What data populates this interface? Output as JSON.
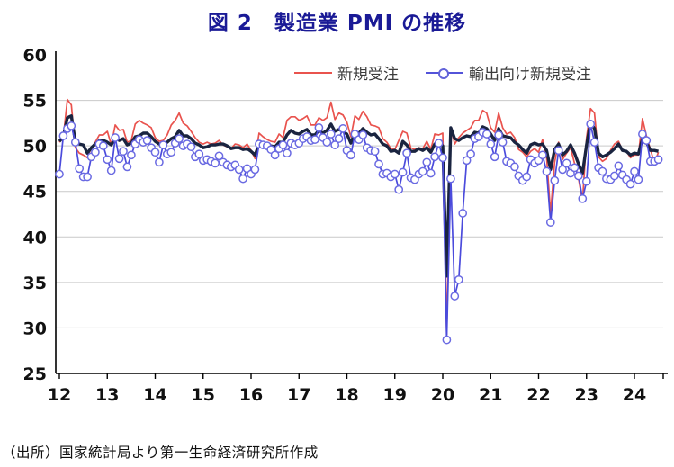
{
  "title": "図 2　製造業 PMI の推移",
  "source": "（出所）国家統計局より第一生命経済研究所作成",
  "legend": {
    "items": [
      {
        "label": "新規受注",
        "color": "#e9534e",
        "marker": "line"
      },
      {
        "label": "輸出向け新規受注",
        "color": "#5353d9",
        "marker": "line-circle"
      }
    ]
  },
  "colors": {
    "title": "#1a1a96",
    "new_orders_line": "#e9534e",
    "export_orders_line": "#4b4bdc",
    "export_marker_stroke": "#6a6ae2",
    "unlabeled_pmi_line": "#1a2440",
    "gridline": "#c9c9c9",
    "axis": "#000000",
    "tick_text": "#111111"
  },
  "chart_data": {
    "type": "line",
    "title": "図 2　製造業 PMI の推移",
    "xlabel": "",
    "ylabel": "",
    "ylim": [
      25,
      60
    ],
    "y_ticks": [
      25,
      30,
      35,
      40,
      45,
      50,
      55,
      60
    ],
    "x_tick_labels": [
      "12",
      "13",
      "14",
      "15",
      "16",
      "17",
      "18",
      "19",
      "20",
      "21",
      "22",
      "23",
      "24"
    ],
    "x_start": "2012-01",
    "x_end": "2024-07",
    "frequency": "monthly",
    "grid": "horizontal gridlines at 30-55",
    "legend_position": "inside top right",
    "series": [
      {
        "name": "新規受注",
        "color": "#e9534e",
        "style": "thin line",
        "values": [
          50.4,
          51.0,
          55.1,
          54.5,
          49.8,
          49.2,
          49.0,
          48.7,
          49.8,
          50.4,
          51.2,
          51.2,
          51.6,
          50.1,
          52.3,
          51.7,
          51.8,
          50.4,
          50.6,
          52.4,
          52.8,
          52.5,
          52.3,
          52.0,
          50.9,
          50.5,
          50.6,
          51.2,
          52.3,
          52.8,
          53.6,
          52.5,
          52.2,
          51.6,
          50.9,
          50.4,
          50.2,
          50.4,
          50.2,
          50.3,
          50.6,
          50.1,
          49.9,
          49.7,
          50.2,
          50.1,
          49.8,
          50.2,
          49.5,
          48.6,
          51.4,
          51.0,
          50.7,
          50.5,
          50.4,
          51.3,
          50.9,
          52.8,
          53.2,
          53.2,
          52.8,
          53.0,
          53.3,
          52.3,
          52.3,
          53.1,
          52.8,
          53.1,
          54.8,
          52.9,
          53.6,
          53.4,
          52.6,
          51.0,
          53.3,
          52.9,
          53.8,
          53.2,
          52.3,
          52.2,
          52.0,
          50.8,
          50.4,
          49.7,
          49.6,
          50.6,
          51.6,
          51.4,
          49.8,
          49.6,
          49.8,
          49.7,
          50.5,
          49.6,
          51.3,
          51.2,
          51.4,
          29.3,
          52.0,
          50.2,
          50.9,
          51.4,
          51.7,
          52.0,
          52.8,
          52.8,
          53.9,
          53.6,
          52.0,
          51.5,
          53.6,
          52.0,
          51.3,
          51.5,
          50.9,
          49.6,
          49.3,
          48.8,
          49.4,
          49.7,
          49.3,
          50.7,
          48.8,
          42.6,
          48.2,
          50.4,
          48.5,
          49.2,
          49.8,
          48.1,
          46.4,
          43.9,
          50.9,
          54.1,
          53.6,
          48.8,
          48.3,
          48.6,
          49.5,
          50.2,
          50.5,
          49.5,
          49.4,
          48.7,
          49.0,
          49.0,
          53.0,
          51.1,
          49.6,
          48.1,
          49.3
        ]
      },
      {
        "name": "輸出向け新規受注",
        "color": "#4b4bdc",
        "style": "thin line with open circle markers",
        "values": [
          46.9,
          51.1,
          51.9,
          52.2,
          50.4,
          47.5,
          46.6,
          46.6,
          48.8,
          49.3,
          50.2,
          50.0,
          48.5,
          47.3,
          50.9,
          48.6,
          49.4,
          47.7,
          49.0,
          50.2,
          50.7,
          50.4,
          50.6,
          49.8,
          49.3,
          48.2,
          50.1,
          49.1,
          49.3,
          50.3,
          50.8,
          50.0,
          50.2,
          49.9,
          48.8,
          49.1,
          48.4,
          48.5,
          48.3,
          48.1,
          48.9,
          48.2,
          47.9,
          47.7,
          47.9,
          47.4,
          46.4,
          47.5,
          46.9,
          47.4,
          50.2,
          50.1,
          50.0,
          49.6,
          49.0,
          49.7,
          50.1,
          49.2,
          50.3,
          50.1,
          50.3,
          50.8,
          51.0,
          50.6,
          50.7,
          52.0,
          50.9,
          50.4,
          51.3,
          50.1,
          50.8,
          51.9,
          49.5,
          49.0,
          51.3,
          50.7,
          51.2,
          49.8,
          49.5,
          49.4,
          48.0,
          46.9,
          47.0,
          46.6,
          46.9,
          45.2,
          47.1,
          49.2,
          46.5,
          46.3,
          46.9,
          47.2,
          48.2,
          47.0,
          48.8,
          50.3,
          48.7,
          28.7,
          46.4,
          33.5,
          35.3,
          42.6,
          48.4,
          49.1,
          50.8,
          51.0,
          51.5,
          51.3,
          50.2,
          48.8,
          51.2,
          50.4,
          48.3,
          48.1,
          47.7,
          46.7,
          46.2,
          46.6,
          48.5,
          48.1,
          48.4,
          49.0,
          47.2,
          41.6,
          46.2,
          49.5,
          47.4,
          48.1,
          47.0,
          47.6,
          46.7,
          44.2,
          46.1,
          52.4,
          50.4,
          47.6,
          47.2,
          46.4,
          46.3,
          46.7,
          47.8,
          46.8,
          46.3,
          45.8,
          47.2,
          46.3,
          51.3,
          50.6,
          48.3,
          48.3,
          48.5
        ]
      },
      {
        "name": "",
        "note": "unlabeled thick dark navy line (headline manufacturing PMI)",
        "color": "#1a2440",
        "style": "thick line, no legend entry",
        "values": [
          50.5,
          51.0,
          53.1,
          53.3,
          50.4,
          50.2,
          50.1,
          49.2,
          49.8,
          50.2,
          50.6,
          50.6,
          50.4,
          50.1,
          50.9,
          50.6,
          50.8,
          50.1,
          50.3,
          51.0,
          51.1,
          51.4,
          51.4,
          51.0,
          50.5,
          50.2,
          50.3,
          50.4,
          50.8,
          51.0,
          51.7,
          51.1,
          51.1,
          50.8,
          50.3,
          50.1,
          49.8,
          49.9,
          50.1,
          50.1,
          50.2,
          50.2,
          50.0,
          49.7,
          49.8,
          49.8,
          49.6,
          49.7,
          49.4,
          49.0,
          50.2,
          50.1,
          50.1,
          50.0,
          49.9,
          50.4,
          50.4,
          51.2,
          51.7,
          51.4,
          51.3,
          51.6,
          51.8,
          51.2,
          51.2,
          51.7,
          51.4,
          51.7,
          52.4,
          51.6,
          51.8,
          51.6,
          51.3,
          50.3,
          51.5,
          51.4,
          51.9,
          51.5,
          51.2,
          51.3,
          50.8,
          50.2,
          50.0,
          49.4,
          49.5,
          49.2,
          50.5,
          50.1,
          49.4,
          49.4,
          49.7,
          49.5,
          49.8,
          49.3,
          50.2,
          50.2,
          50.0,
          35.7,
          52.0,
          50.8,
          50.6,
          50.9,
          51.1,
          51.0,
          51.5,
          51.4,
          52.1,
          51.9,
          51.3,
          50.6,
          51.9,
          51.1,
          51.0,
          50.9,
          50.4,
          50.1,
          49.6,
          49.2,
          50.1,
          50.3,
          50.1,
          50.2,
          49.5,
          47.4,
          49.6,
          50.2,
          49.0,
          49.4,
          50.1,
          49.2,
          48.0,
          47.0,
          50.1,
          52.6,
          51.9,
          49.2,
          48.8,
          49.0,
          49.3,
          49.7,
          50.2,
          49.5,
          49.4,
          49.0,
          49.2,
          49.1,
          50.8,
          50.4,
          49.5,
          49.5,
          49.4
        ]
      }
    ]
  }
}
